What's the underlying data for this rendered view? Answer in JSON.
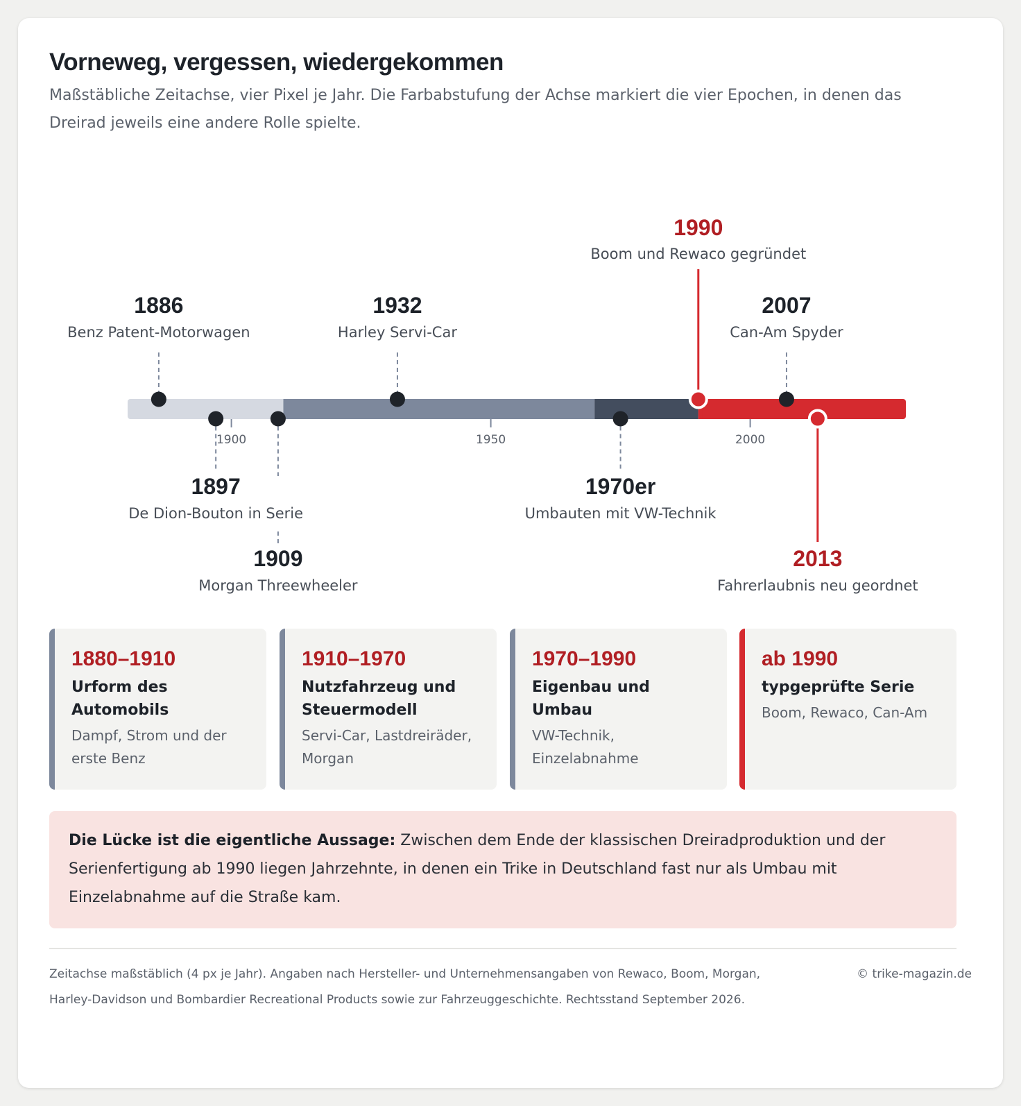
{
  "title": "Vorneweg, vergessen, wiedergekommen",
  "subtitle": "Maßstäbliche Zeitachse, vier Pixel je Jahr. Die Farbabstufung der Achse markiert die vier Epochen, in denen das Dreirad jeweils eine andere Rolle spielte.",
  "chart_data": {
    "type": "timeline",
    "axis_range": [
      1880,
      2030
    ],
    "axis_ticks": [
      {
        "value": 1900,
        "label": "1900"
      },
      {
        "value": 1950,
        "label": "1950"
      },
      {
        "value": 2000,
        "label": "2000"
      }
    ],
    "epochs": [
      {
        "from": 1880,
        "to": 1910,
        "color": "#d5d9e1"
      },
      {
        "from": 1910,
        "to": 1970,
        "color": "#7d889c"
      },
      {
        "from": 1970,
        "to": 1990,
        "color": "#434d5e"
      },
      {
        "from": 1990,
        "to": 2030,
        "color": "#d52a2f"
      }
    ],
    "events": [
      {
        "year": 1886,
        "year_label": "1886",
        "label": "Benz Patent-Motorwagen",
        "side": "above",
        "highlight": false
      },
      {
        "year": 1897,
        "year_label": "1897",
        "label": "De Dion-Bouton in Serie",
        "side": "below",
        "highlight": false
      },
      {
        "year": 1909,
        "year_label": "1909",
        "label": "Morgan Threewheeler",
        "side": "below",
        "highlight": false
      },
      {
        "year": 1932,
        "year_label": "1932",
        "label": "Harley Servi-Car",
        "side": "above",
        "highlight": false
      },
      {
        "year": 1975,
        "year_label": "1970er",
        "label": "Umbauten mit VW-Technik",
        "side": "below",
        "highlight": false
      },
      {
        "year": 1990,
        "year_label": "1990",
        "label": "Boom und Rewaco gegründet",
        "side": "above",
        "highlight": true
      },
      {
        "year": 2007,
        "year_label": "2007",
        "label": "Can-Am Spyder",
        "side": "above",
        "highlight": false
      },
      {
        "year": 2013,
        "year_label": "2013",
        "label": "Fahrerlaubnis neu geordnet",
        "side": "below",
        "highlight": true
      }
    ]
  },
  "epoch_cards": [
    {
      "range": "1880–1910",
      "heading": "Urform des Automobils",
      "desc": "Dampf, Strom und der erste Benz",
      "accent": "#7d889c"
    },
    {
      "range": "1910–1970",
      "heading": "Nutzfahrzeug und Steuermodell",
      "desc": "Servi-Car, Lastdreiräder, Morgan",
      "accent": "#7d889c"
    },
    {
      "range": "1970–1990",
      "heading": "Eigenbau und Umbau",
      "desc": "VW-Technik, Einzelabnahme",
      "accent": "#7d889c"
    },
    {
      "range": "ab 1990",
      "heading": "typgeprüfte Serie",
      "desc": "Boom, Rewaco, Can-Am",
      "accent": "#d52a2f"
    }
  ],
  "note": {
    "lead": "Die Lücke ist die eigentliche Aussage:",
    "text": " Zwischen dem Ende der klassischen Dreiradproduktion und der Serienfertigung ab 1990 liegen Jahrzehnte, in denen ein Trike in Deutschland fast nur als Umbau mit Einzelabnahme auf die Straße kam."
  },
  "footnote": "Zeitachse maßstäblich (4 px je Jahr). Angaben nach Hersteller- und Unternehmensangaben von Rewaco, Boom, Morgan, Harley-Davidson und Bombardier Recreational Products sowie zur Fahrzeuggeschichte. Rechtsstand September 2026.",
  "credit": "© trike-magazin.de"
}
